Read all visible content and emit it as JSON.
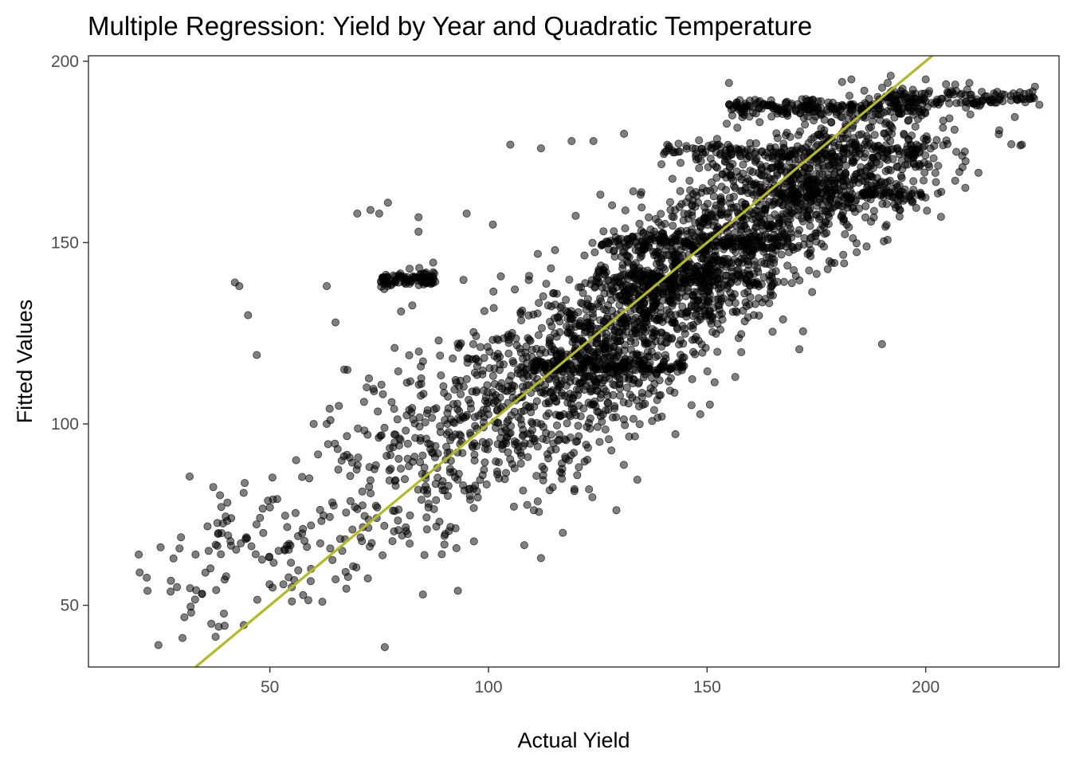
{
  "chart_data": {
    "type": "scatter",
    "title": "Multiple Regression: Yield by Year and Quadratic Temperature",
    "xlabel": "Actual Yield",
    "ylabel": "Fitted Values",
    "xlim": [
      8.5,
      230.5
    ],
    "ylim": [
      33,
      201.5
    ],
    "x_ticks": [
      50,
      100,
      150,
      200
    ],
    "y_ticks": [
      50,
      100,
      150,
      200
    ],
    "x_tick_labels": [
      "50",
      "100",
      "150",
      "200"
    ],
    "y_tick_labels": [
      "50",
      "100",
      "150",
      "200"
    ],
    "grid": false,
    "legend": "none",
    "point_color": "#000000",
    "point_opacity": 0.5,
    "line_color": "#b5b82a",
    "reference_line": {
      "slope": 1,
      "intercept": 0
    },
    "clusters": [
      {
        "x_mean": 135,
        "x_sd": 14,
        "y_mean": 135,
        "y_sd": 14,
        "n": 600,
        "rho": 0.6
      },
      {
        "x_mean": 175,
        "x_sd": 16,
        "y_mean": 168,
        "y_sd": 10,
        "n": 700,
        "rho": 0.5
      },
      {
        "x_mean": 118,
        "x_sd": 20,
        "y_mean": 110,
        "y_sd": 16,
        "n": 700,
        "rho": 0.6
      },
      {
        "x_mean": 85,
        "x_sd": 18,
        "y_mean": 92,
        "y_sd": 18,
        "n": 260,
        "rho": 0.55
      },
      {
        "x_mean": 50,
        "x_sd": 14,
        "y_mean": 65,
        "y_sd": 10,
        "n": 90,
        "rho": 0.3
      },
      {
        "x_mean": 155,
        "x_sd": 15,
        "y_mean": 148,
        "y_sd": 12,
        "n": 500,
        "rho": 0.6
      }
    ],
    "bands": [
      {
        "x_range": [
          75,
          88
        ],
        "y": 140,
        "n": 90
      },
      {
        "x_range": [
          155,
          200
        ],
        "y": 187,
        "n": 220
      },
      {
        "x_range": [
          140,
          200
        ],
        "y": 175,
        "n": 160
      },
      {
        "x_range": [
          110,
          145
        ],
        "y": 116,
        "n": 160
      },
      {
        "x_range": [
          125,
          175
        ],
        "y": 150,
        "n": 140
      },
      {
        "x_range": [
          165,
          200
        ],
        "y": 163,
        "n": 110
      },
      {
        "x_range": [
          190,
          225
        ],
        "y": 190,
        "n": 120
      },
      {
        "x_range": [
          130,
          165
        ],
        "y": 140,
        "n": 90
      }
    ],
    "points": [
      [
        20,
        64
      ],
      [
        22,
        54
      ],
      [
        25,
        66
      ],
      [
        30,
        41
      ],
      [
        32,
        48
      ],
      [
        33,
        64
      ],
      [
        36,
        65
      ],
      [
        40,
        58
      ],
      [
        42,
        139
      ],
      [
        43,
        138
      ],
      [
        45,
        130
      ],
      [
        47,
        119
      ],
      [
        44,
        81
      ],
      [
        50,
        77
      ],
      [
        52,
        65
      ],
      [
        55,
        55
      ],
      [
        62,
        51
      ],
      [
        63,
        138
      ],
      [
        65,
        128
      ],
      [
        67,
        115
      ],
      [
        70,
        158
      ],
      [
        73,
        159
      ],
      [
        75,
        158
      ],
      [
        77,
        161
      ],
      [
        84,
        157
      ],
      [
        84,
        153
      ],
      [
        112,
        63
      ],
      [
        85,
        53
      ],
      [
        88,
        79
      ],
      [
        95,
        158
      ],
      [
        101,
        155
      ],
      [
        105,
        177
      ],
      [
        112,
        176
      ],
      [
        119,
        178
      ],
      [
        124,
        178
      ],
      [
        131,
        180
      ],
      [
        190,
        122
      ],
      [
        207,
        175
      ],
      [
        225,
        193
      ],
      [
        226,
        188
      ],
      [
        222,
        177
      ],
      [
        195,
        180
      ],
      [
        155,
        194
      ],
      [
        192,
        196
      ],
      [
        200,
        195
      ],
      [
        210,
        194
      ],
      [
        183,
        195
      ],
      [
        93,
        54
      ],
      [
        60,
        100
      ],
      [
        56,
        90
      ],
      [
        59,
        85
      ],
      [
        63,
        100
      ],
      [
        108,
        97
      ],
      [
        117,
        70
      ],
      [
        123,
        82
      ],
      [
        80,
        131
      ]
    ]
  }
}
